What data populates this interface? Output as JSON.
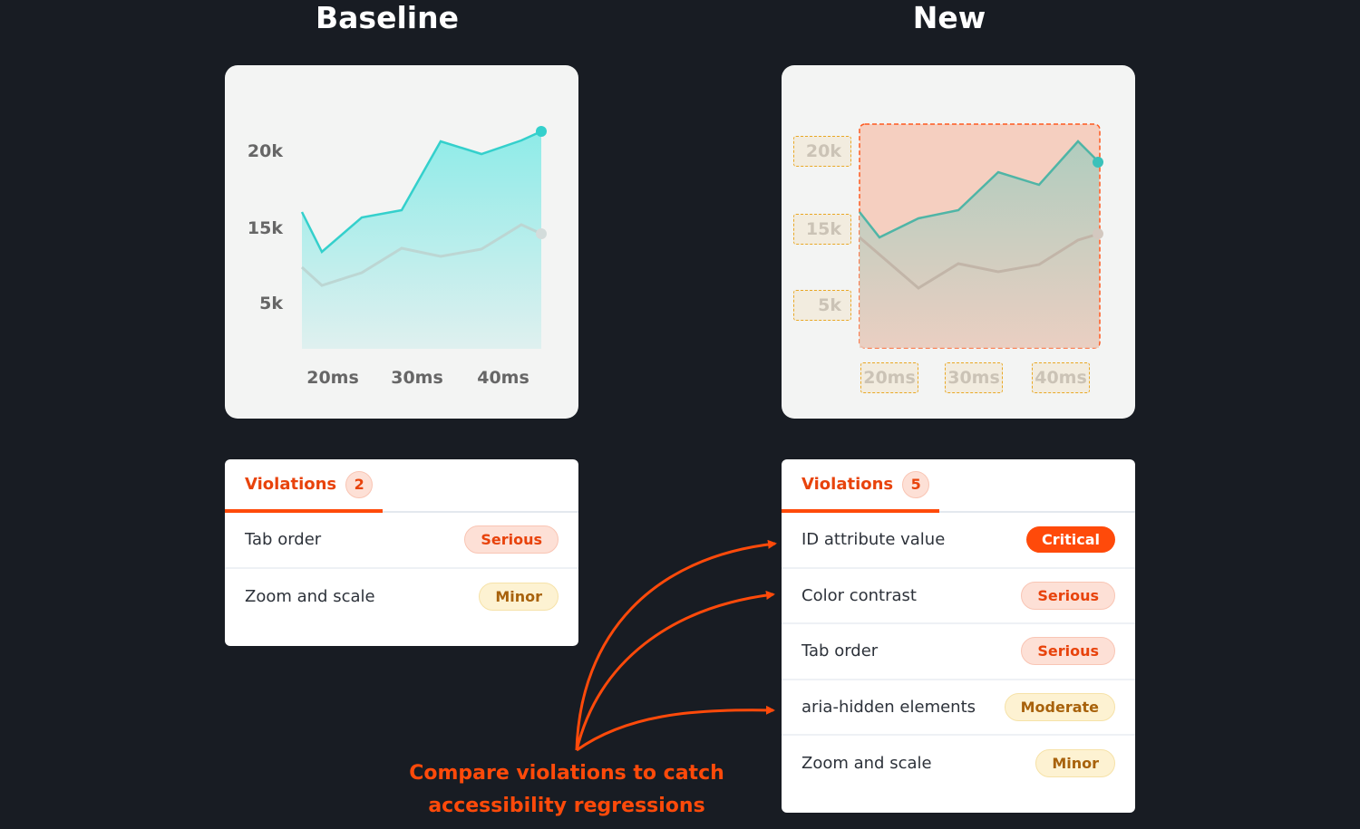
{
  "baseline": {
    "title": "Baseline",
    "y_ticks": [
      "20k",
      "15k",
      "5k"
    ],
    "x_ticks": [
      "20ms",
      "30ms",
      "40ms"
    ],
    "violations": {
      "label": "Violations",
      "count": "2",
      "items": [
        {
          "name": "Tab order",
          "severity": "Serious"
        },
        {
          "name": "Zoom and scale",
          "severity": "Minor"
        }
      ]
    }
  },
  "new": {
    "title": "New",
    "y_ticks": [
      "20k",
      "15k",
      "5k"
    ],
    "x_ticks": [
      "20ms",
      "30ms",
      "40ms"
    ],
    "violations": {
      "label": "Violations",
      "count": "5",
      "items": [
        {
          "name": "ID attribute value",
          "severity": "Critical"
        },
        {
          "name": "Color contrast",
          "severity": "Serious"
        },
        {
          "name": "Tab order",
          "severity": "Serious"
        },
        {
          "name": "aria-hidden elements",
          "severity": "Moderate"
        },
        {
          "name": "Zoom and scale",
          "severity": "Minor"
        }
      ]
    }
  },
  "caption": {
    "line1": "Compare violations to catch",
    "line2": "accessibility regressions"
  },
  "colors": {
    "accent": "#ff4a0a",
    "teal": "#3dd4d0",
    "background": "#181c23"
  }
}
